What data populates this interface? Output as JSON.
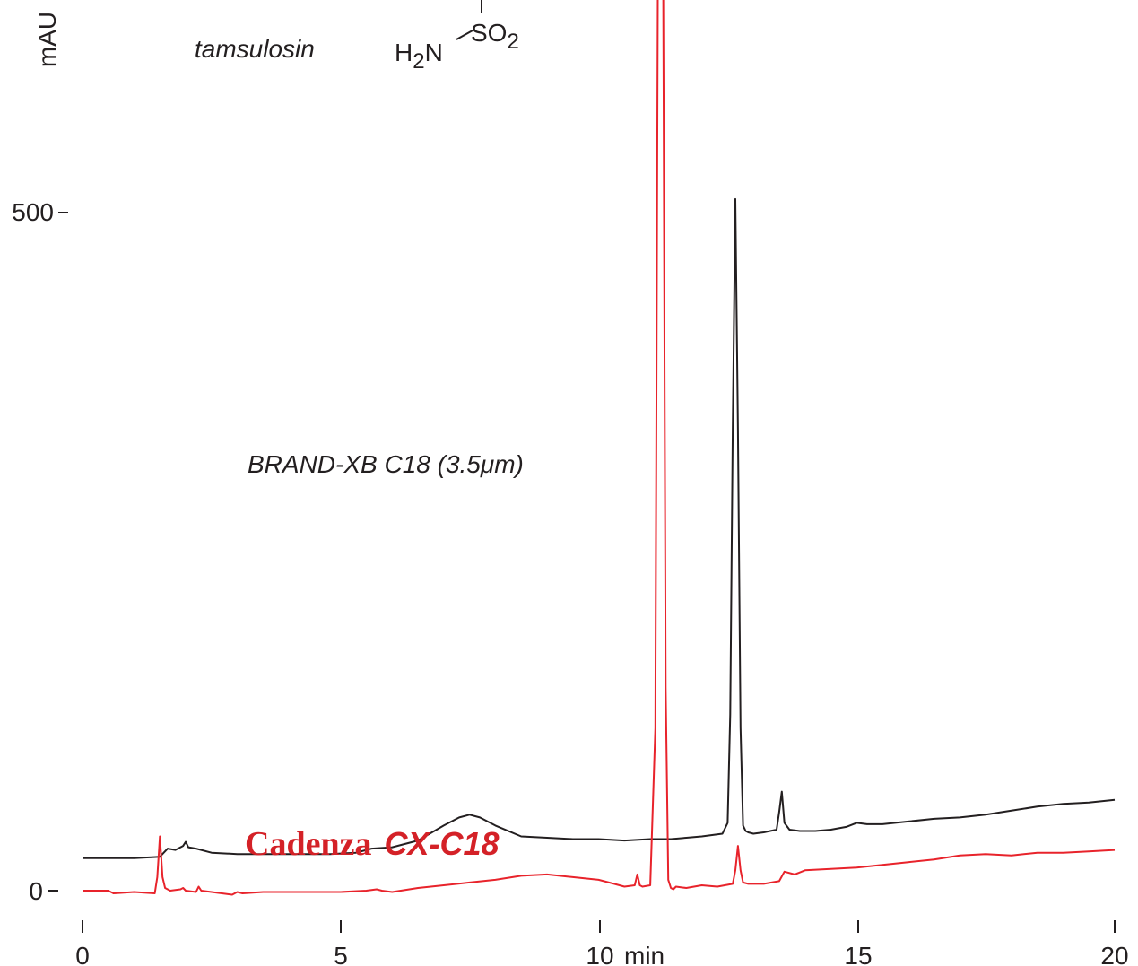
{
  "chart_data": {
    "type": "line",
    "xlabel": "min",
    "ylabel": "mAU",
    "x_ticks": [
      "0",
      "5",
      "10",
      "15",
      "20"
    ],
    "y_ticks": [
      "0",
      "500"
    ],
    "xlim": [
      0,
      20
    ],
    "ylim": [
      -40,
      880
    ],
    "colors": {
      "cadenza": "#e8232b",
      "brand": "#231f20",
      "text": "#231f20",
      "brand_label": "#d42127"
    },
    "annotations": {
      "compound": "tamsulosin",
      "fragment_so2": "SO",
      "fragment_so2_sub": "2",
      "fragment_h2n_a": "H",
      "fragment_h2n_sub": "2",
      "fragment_h2n_b": "N"
    },
    "series": [
      {
        "name": "BRAND-XB C18 (3.5μm)",
        "color": "#231f20",
        "x": [
          0.0,
          0.5,
          1.0,
          1.5,
          1.65,
          1.8,
          1.95,
          2.0,
          2.05,
          2.2,
          2.5,
          3.0,
          4.0,
          4.8,
          5.3,
          5.6,
          6.0,
          6.5,
          7.0,
          7.3,
          7.5,
          7.7,
          8.0,
          8.5,
          9.0,
          9.5,
          10.0,
          10.5,
          11.0,
          11.4,
          11.7,
          12.0,
          12.2,
          12.4,
          12.5,
          12.55,
          12.6,
          12.65,
          12.7,
          12.75,
          12.8,
          12.85,
          12.9,
          13.0,
          13.2,
          13.45,
          13.5,
          13.55,
          13.6,
          13.7,
          13.9,
          14.2,
          14.5,
          14.8,
          15.0,
          15.2,
          15.5,
          16.0,
          16.5,
          17.0,
          17.5,
          18.0,
          18.5,
          19.0,
          19.5,
          20.0
        ],
        "y": [
          24,
          24,
          24,
          25,
          31,
          30,
          33,
          36,
          32,
          31,
          28,
          27,
          27,
          27,
          28,
          31,
          32,
          37,
          48,
          54,
          56,
          54,
          48,
          40,
          39,
          38,
          38,
          37,
          38,
          38,
          39,
          40,
          41,
          42,
          50,
          130,
          340,
          510,
          340,
          120,
          48,
          44,
          43,
          42,
          43,
          45,
          58,
          73,
          50,
          45,
          44,
          44,
          45,
          47,
          50,
          49,
          49,
          51,
          53,
          54,
          56,
          59,
          62,
          64,
          65,
          67
        ]
      },
      {
        "name": "Cadenza CX-C18",
        "color": "#e8232b",
        "x": [
          0.0,
          0.5,
          0.6,
          1.0,
          1.4,
          1.45,
          1.5,
          1.55,
          1.6,
          1.7,
          1.9,
          1.95,
          2.0,
          2.2,
          2.25,
          2.3,
          2.5,
          2.9,
          3.0,
          3.1,
          3.5,
          4.0,
          5.0,
          5.5,
          5.7,
          5.8,
          6.0,
          6.5,
          7.0,
          7.5,
          8.0,
          8.5,
          9.0,
          9.5,
          10.0,
          10.3,
          10.5,
          10.7,
          10.75,
          10.8,
          10.85,
          11.0,
          11.1,
          11.15,
          11.2,
          11.25,
          11.3,
          11.35,
          11.4,
          11.45,
          11.5,
          11.7,
          12.0,
          12.3,
          12.6,
          12.65,
          12.7,
          12.75,
          12.8,
          12.9,
          13.2,
          13.5,
          13.6,
          13.8,
          14.0,
          14.5,
          15.0,
          15.5,
          16.0,
          16.5,
          17.0,
          17.5,
          18.0,
          18.5,
          19.0,
          19.5,
          20.0
        ],
        "y": [
          0,
          0,
          -2,
          -1,
          -2,
          10,
          40,
          10,
          2,
          0,
          1,
          2,
          0,
          -1,
          3,
          0,
          -1,
          -3,
          -1,
          -2,
          -1,
          -1,
          -1,
          0,
          1,
          0,
          -1,
          2,
          4,
          6,
          8,
          11,
          12,
          10,
          8,
          5,
          3,
          4,
          12,
          4,
          3,
          4,
          120,
          700,
          950,
          700,
          150,
          8,
          2,
          1,
          3,
          2,
          4,
          3,
          5,
          15,
          33,
          15,
          6,
          5,
          5,
          7,
          14,
          12,
          15,
          16,
          17,
          19,
          21,
          23,
          26,
          27,
          26,
          28,
          28,
          29,
          30
        ]
      }
    ],
    "series_labels": {
      "brand": "BRAND-XB C18 (3.5μm)",
      "cadenza_serif": "Cadenza",
      "cadenza_sans": "CX-C18"
    }
  }
}
